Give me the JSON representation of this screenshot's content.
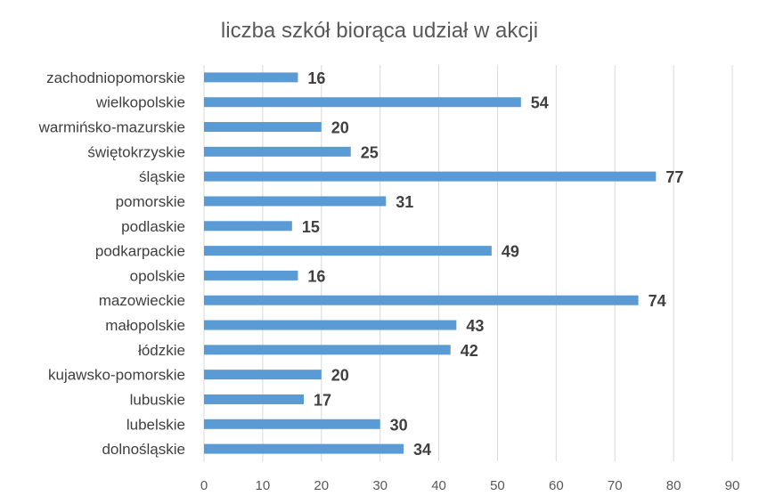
{
  "chart_data": {
    "type": "bar",
    "orientation": "horizontal",
    "title": "liczba szkół biorąca udział w akcji",
    "xlabel": "",
    "ylabel": "",
    "categories": [
      "dolnośląskie",
      "lubelskie",
      "lubuskie",
      "kujawsko-pomorskie",
      "łódzkie",
      "małopolskie",
      "mazowieckie",
      "opolskie",
      "podkarpackie",
      "podlaskie",
      "pomorskie",
      "śląskie",
      "świętokrzyskie",
      "warmińsko-mazurskie",
      "wielkopolskie",
      "zachodniopomorskie"
    ],
    "values": [
      34,
      30,
      17,
      20,
      42,
      43,
      74,
      16,
      49,
      15,
      31,
      77,
      25,
      20,
      54,
      16
    ],
    "xlim": [
      0,
      90
    ],
    "xticks": [
      0,
      10,
      20,
      30,
      40,
      50,
      60,
      70,
      80,
      90
    ],
    "grid": "vertical",
    "legend": "none",
    "bar_color": "#5b9bd5"
  }
}
